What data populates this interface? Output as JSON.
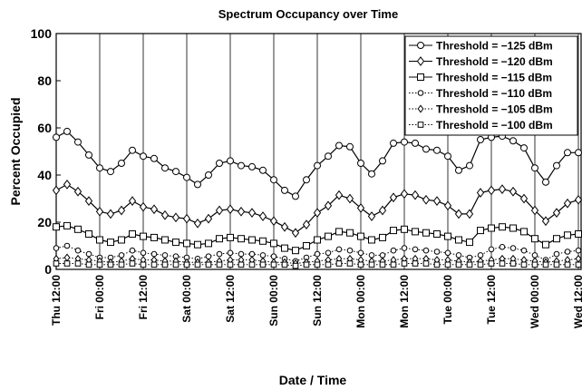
{
  "chart_data": {
    "type": "line",
    "title": "Spectrum Occupancy over Time",
    "x_label": "Date / Time",
    "y_label": "Percent Occupied",
    "x": [
      0,
      3,
      6,
      9,
      12,
      15,
      18,
      21,
      24,
      27,
      30,
      33,
      36,
      39,
      42,
      45,
      48,
      51,
      54,
      57,
      60,
      63,
      66,
      69,
      72,
      75,
      78,
      81,
      84,
      87,
      90,
      93,
      96,
      99,
      102,
      105,
      108,
      111,
      114,
      117,
      120,
      123,
      126,
      129,
      132,
      135,
      138,
      141,
      144
    ],
    "xlim": [
      0,
      144
    ],
    "xticks": [
      {
        "value": 0,
        "label": "Thu 12:00"
      },
      {
        "value": 12,
        "label": "Fri 00:00"
      },
      {
        "value": 24,
        "label": "Fri 12:00"
      },
      {
        "value": 36,
        "label": "Sat 00:00"
      },
      {
        "value": 48,
        "label": "Sat 12:00"
      },
      {
        "value": 60,
        "label": "Sun 00:00"
      },
      {
        "value": 72,
        "label": "Sun 12:00"
      },
      {
        "value": 84,
        "label": "Mon 00:00"
      },
      {
        "value": 96,
        "label": "Mon 12:00"
      },
      {
        "value": 108,
        "label": "Tue 00:00"
      },
      {
        "value": 120,
        "label": "Tue 12:00"
      },
      {
        "value": 132,
        "label": "Wed 00:00"
      },
      {
        "value": 144,
        "label": "Wed 12:00"
      }
    ],
    "ylim": [
      0,
      100
    ],
    "yticks": [
      0,
      20,
      40,
      60,
      80,
      100
    ],
    "grid": "x",
    "legend": "upper right",
    "series": [
      {
        "name": "Threshold = −125 dBm",
        "color": "#000000",
        "marker": "circle",
        "line_style": "solid",
        "values": [
          56,
          58.5,
          54,
          48.5,
          43,
          41.5,
          45,
          50.5,
          48,
          47,
          43,
          41.5,
          39,
          36,
          40,
          45,
          46,
          44,
          43.5,
          42,
          38,
          33.5,
          31,
          38,
          44,
          48,
          52.5,
          52,
          45,
          40.5,
          46,
          53.5,
          54,
          53.5,
          51,
          50.5,
          48,
          42,
          44,
          55,
          56,
          56.5,
          54.5,
          51.5,
          43,
          37,
          44,
          49.5,
          49.5
        ]
      },
      {
        "name": "Threshold = −120 dBm",
        "color": "#000000",
        "marker": "diamond",
        "line_style": "solid",
        "values": [
          33.5,
          36,
          33,
          29,
          24.5,
          23.5,
          25,
          29,
          26.5,
          25.5,
          23,
          22,
          21.5,
          19.5,
          21.5,
          25,
          25.5,
          24.5,
          24,
          22.5,
          20.5,
          18,
          15.5,
          19,
          24,
          27,
          31.5,
          30,
          26,
          22.5,
          25,
          30.5,
          32,
          31.5,
          29.5,
          29,
          27,
          23.5,
          23.5,
          32.5,
          33.5,
          34,
          33,
          30,
          25,
          20.5,
          24,
          28,
          29.5
        ]
      },
      {
        "name": "Threshold = −115 dBm",
        "color": "#000000",
        "marker": "square",
        "line_style": "solid",
        "values": [
          18,
          18.5,
          17,
          15,
          12.5,
          11.5,
          12.5,
          15,
          14,
          13.5,
          12.5,
          11.5,
          11,
          10.5,
          11,
          13,
          13.5,
          13,
          12.5,
          12,
          11,
          9,
          8,
          10,
          12.5,
          14,
          16,
          15.5,
          14,
          12.5,
          13.5,
          16.5,
          17,
          16,
          15.5,
          15,
          14,
          12.5,
          11.5,
          16.5,
          17.5,
          18,
          17.5,
          16,
          13,
          10.5,
          13,
          14.5,
          15
        ]
      },
      {
        "name": "Threshold = −110 dBm",
        "color": "#000000",
        "marker": "circle",
        "line_style": "dotted",
        "values": [
          9,
          10,
          8,
          6.5,
          5,
          5,
          6,
          8,
          7,
          6.5,
          6,
          5.5,
          5,
          4.5,
          5.5,
          6.5,
          7,
          6.5,
          6.5,
          6,
          5.5,
          4.5,
          3.5,
          5,
          6.5,
          7,
          8.5,
          8,
          7,
          6,
          6,
          8,
          9,
          8.5,
          8,
          7.5,
          7,
          6,
          5,
          6,
          8.5,
          9.5,
          9,
          8,
          6,
          4,
          6.5,
          7.5,
          8
        ]
      },
      {
        "name": "Threshold = −105 dBm",
        "color": "#000000",
        "marker": "diamond",
        "line_style": "dotted",
        "values": [
          4.5,
          5,
          4.5,
          4,
          3.5,
          3,
          3.5,
          4.5,
          4,
          4,
          3.5,
          3.5,
          3,
          3,
          3,
          3.5,
          4,
          4,
          4,
          3.5,
          3,
          3,
          2.5,
          3,
          3.5,
          4,
          4.5,
          4.5,
          4,
          3.5,
          3.5,
          4,
          4.5,
          4.5,
          4.5,
          4,
          4,
          3.5,
          3,
          3.5,
          4,
          4.5,
          4.5,
          4,
          3.5,
          3,
          3.5,
          4,
          4.5
        ]
      },
      {
        "name": "Threshold = −100 dBm",
        "color": "#000000",
        "marker": "square",
        "line_style": "dotted",
        "values": [
          2.5,
          2.5,
          2.5,
          2,
          2,
          2,
          2,
          2.5,
          2,
          2,
          2,
          2,
          2,
          2,
          2,
          2,
          2,
          2,
          2,
          2,
          2,
          2,
          1.5,
          2,
          2,
          2,
          2.5,
          2.5,
          2,
          2,
          2,
          2,
          2.5,
          2.5,
          2.5,
          2,
          2,
          2,
          2,
          2,
          2.5,
          2.5,
          2.5,
          2,
          2,
          2,
          2,
          2,
          2
        ]
      }
    ]
  }
}
